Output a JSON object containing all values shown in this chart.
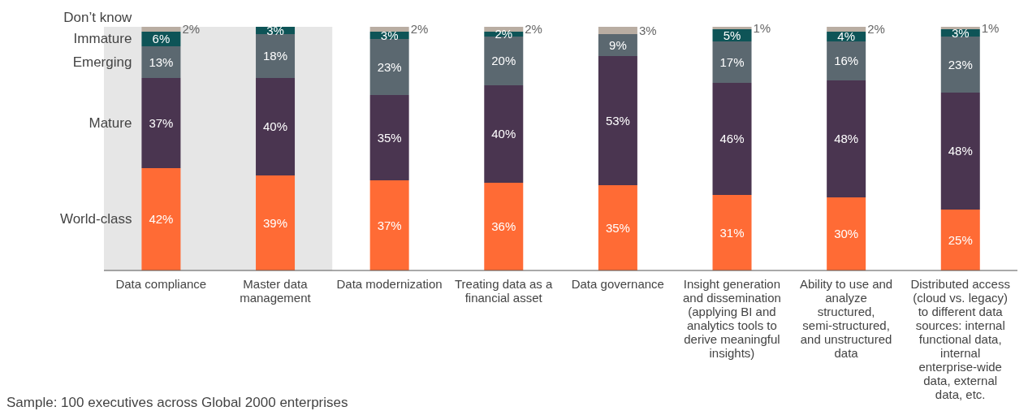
{
  "chart_data": {
    "type": "bar",
    "stacked": true,
    "legend": "left",
    "categories": [
      "Data compliance",
      "Master data management",
      "Data modernization",
      "Treating data as a financial asset",
      "Data governance",
      "Insight generation and dissemination (applying BI and analytics tools to derive meaningful insights)",
      "Ability to use and analyze structured, semi-structured, and unstructured data",
      "Distributed access (cloud vs. legacy) to different data sources: internal functional data, internal enterprise-wide data, external data, etc."
    ],
    "series": [
      {
        "name": "World-class",
        "color": "#ff6b35",
        "values": [
          42,
          39,
          37,
          36,
          35,
          31,
          30,
          25
        ],
        "value_labels": [
          "42%",
          "39%",
          "37%",
          "36%",
          "35%",
          "31%",
          "30%",
          "25%"
        ]
      },
      {
        "name": "Mature",
        "color": "#4a3550",
        "values": [
          37,
          40,
          35,
          40,
          53,
          46,
          48,
          48
        ],
        "value_labels": [
          "37%",
          "40%",
          "35%",
          "40%",
          "53%",
          "46%",
          "48%",
          "48%"
        ]
      },
      {
        "name": "Emerging",
        "color": "#5b6870",
        "values": [
          13,
          18,
          23,
          20,
          9,
          17,
          16,
          23
        ],
        "value_labels": [
          "13%",
          "18%",
          "23%",
          "20%",
          "9%",
          "17%",
          "16%",
          "23%"
        ]
      },
      {
        "name": "Immature",
        "color": "#0e5457",
        "values": [
          6,
          3,
          3,
          2,
          null,
          5,
          4,
          3
        ],
        "value_labels": [
          "6%",
          "3%",
          "3%",
          "2%",
          null,
          "5%",
          "4%",
          "3%"
        ]
      },
      {
        "name": "Don’t know",
        "color": "#b9ada2",
        "values": [
          2,
          null,
          2,
          2,
          3,
          1,
          2,
          1
        ],
        "value_labels": [
          "2%",
          null,
          "2%",
          "2%",
          "3%",
          "1%",
          "2%",
          "1%"
        ]
      }
    ],
    "bands": [
      {
        "axis": "x",
        "from": "Data compliance",
        "to": "Master data management",
        "color": "#e6e6e6"
      }
    ],
    "annotations": [
      "Sample: 100 executives across Global 2000 enterprises"
    ]
  }
}
